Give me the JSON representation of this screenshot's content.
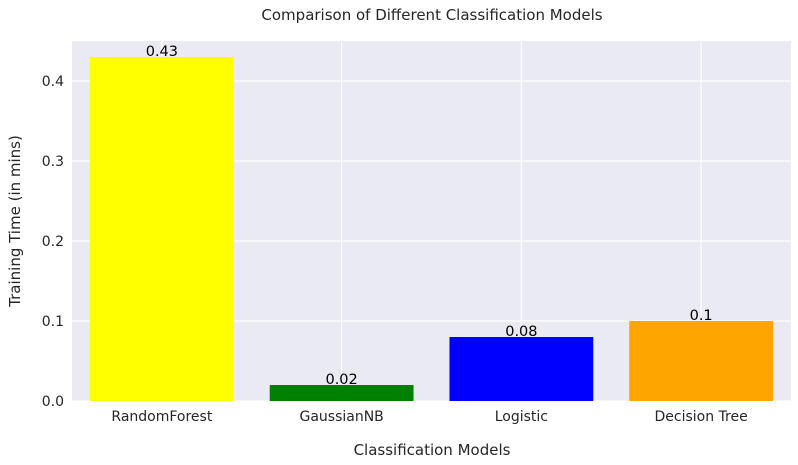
{
  "chart_data": {
    "type": "bar",
    "title": "Comparison of Different Classification Models",
    "xlabel": "Classification Models",
    "ylabel": "Training Time (in mins)",
    "categories": [
      "RandomForest",
      "GaussianNB",
      "Logistic",
      "Decision Tree"
    ],
    "values": [
      0.43,
      0.02,
      0.08,
      0.1
    ],
    "data_labels": [
      "0.43",
      "0.02",
      "0.08",
      "0.1"
    ],
    "colors": [
      "#ffff00",
      "#008000",
      "#0000ff",
      "#ffa500"
    ],
    "ylim": [
      0,
      0.45
    ],
    "yticks": [
      0.0,
      0.1,
      0.2,
      0.3,
      0.4
    ],
    "ytick_labels": [
      "0.0",
      "0.1",
      "0.2",
      "0.3",
      "0.4"
    ],
    "grid": true,
    "background": "#eaeaf2",
    "legend": "none"
  }
}
